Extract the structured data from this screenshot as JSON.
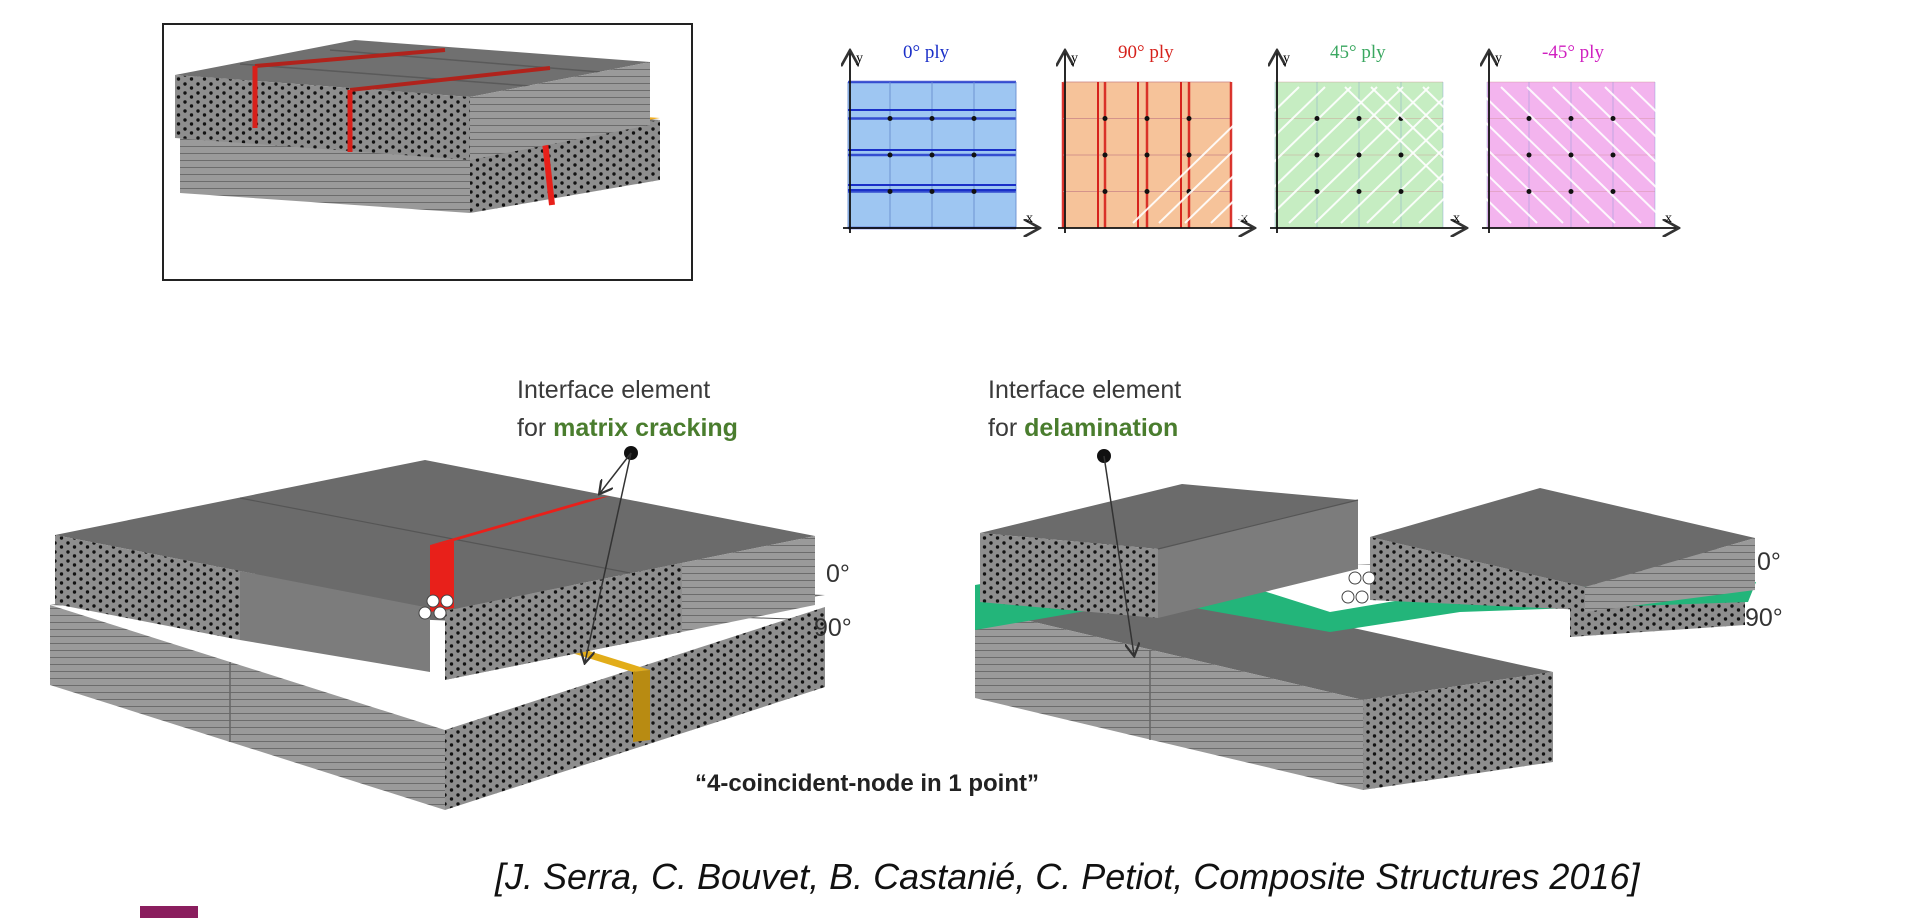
{
  "plies": [
    {
      "label": "0° ply",
      "color": "#1a2fc8",
      "fill": "#9ec6f2",
      "line": "#1a2fc8"
    },
    {
      "label": "90° ply",
      "color": "#d6221c",
      "fill": "#f6c39a",
      "line": "#d6221c"
    },
    {
      "label": "45° ply",
      "color": "#3aa760",
      "fill": "#c6edc2",
      "line": "#8fcf8f"
    },
    {
      "label": "-45° ply",
      "color": "#d020c0",
      "fill": "#f3b4ee",
      "line": "#c8a0c8"
    }
  ],
  "axes": {
    "x": "x",
    "y": "y"
  },
  "left_diagram": {
    "label_line1": "Interface element",
    "label_line2_prefix": "for ",
    "label_line2_highlight": "matrix cracking",
    "top_angle": "0°",
    "bottom_angle": "90°"
  },
  "right_diagram": {
    "label_line1": "Interface element",
    "label_line2_prefix": "for ",
    "label_line2_highlight": "delamination",
    "top_angle": "0°",
    "bottom_angle": "90°"
  },
  "caption": "“4-coincident-node in 1 point”",
  "citation": "[J. Serra, C. Bouvet, B. Castanié, C. Petiot, Composite Structures 2016]",
  "colors": {
    "crack_red": "#e8201a",
    "interface_yellow": "#e2ad1a",
    "delamination_green": "#23b57a",
    "accent_purple": "#8a1e5e"
  }
}
